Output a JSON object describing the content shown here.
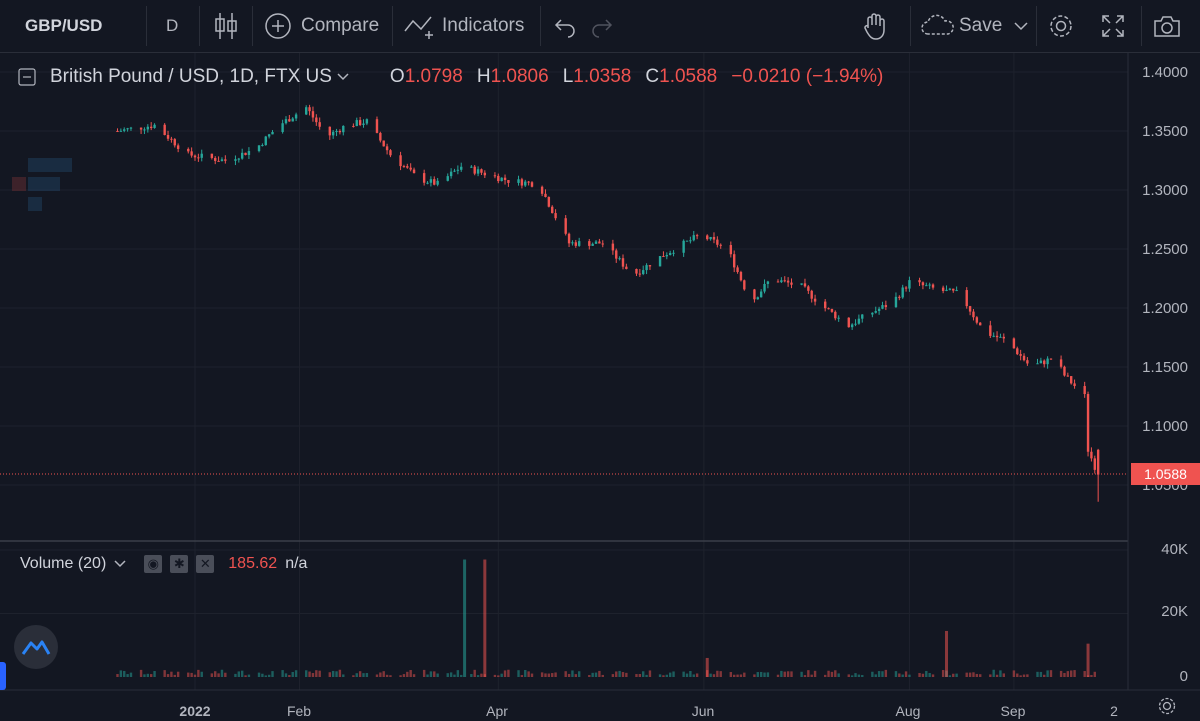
{
  "toolbar": {
    "symbol": "GBP/USD",
    "interval": "D",
    "compare_label": "Compare",
    "indicators_label": "Indicators",
    "save_label": "Save"
  },
  "legend": {
    "title": "British Pound / USD, 1D, FTX US",
    "o_label": "O",
    "o_value": "1.0798",
    "h_label": "H",
    "h_value": "1.0806",
    "l_label": "L",
    "l_value": "1.0358",
    "c_label": "C",
    "c_value": "1.0588",
    "change": "−0.0210 (−1.94%)"
  },
  "price_axis": [
    "1.4000",
    "1.3500",
    "1.3000",
    "1.2500",
    "1.2000",
    "1.1500",
    "1.1000",
    "1.0500"
  ],
  "current_price": "1.0588",
  "volume_legend": {
    "label": "Volume (20)",
    "value": "185.62",
    "na": "n/a"
  },
  "volume_axis": [
    "40K",
    "20K",
    "0"
  ],
  "time_axis": [
    "2022",
    "Feb",
    "Apr",
    "Jun",
    "Aug",
    "Sep",
    "2"
  ],
  "colors": {
    "up": "#26a69a",
    "down": "#ef5350",
    "background": "#131722",
    "grid": "#1e222d"
  },
  "chart_data": {
    "type": "candlestick",
    "ylim": [
      1.03,
      1.41
    ],
    "volume_ylim": [
      0,
      40000
    ],
    "anchors": [
      {
        "date": "2021-12-09",
        "close": 1.35
      },
      {
        "date": "2021-12-20",
        "close": 1.355
      },
      {
        "date": "2021-12-30",
        "close": 1.33
      },
      {
        "date": "2022-01-10",
        "close": 1.325
      },
      {
        "date": "2022-01-19",
        "close": 1.335
      },
      {
        "date": "2022-01-26",
        "close": 1.355
      },
      {
        "date": "2022-02-03",
        "close": 1.37
      },
      {
        "date": "2022-02-09",
        "close": 1.345
      },
      {
        "date": "2022-02-15",
        "close": 1.355
      },
      {
        "date": "2022-02-21",
        "close": 1.358
      },
      {
        "date": "2022-02-28",
        "close": 1.33
      },
      {
        "date": "2022-03-08",
        "close": 1.31
      },
      {
        "date": "2022-03-14",
        "close": 1.305
      },
      {
        "date": "2022-03-21",
        "close": 1.32
      },
      {
        "date": "2022-04-04",
        "close": 1.308
      },
      {
        "date": "2022-04-13",
        "close": 1.305
      },
      {
        "date": "2022-04-22",
        "close": 1.255
      },
      {
        "date": "2022-05-02",
        "close": 1.255
      },
      {
        "date": "2022-05-11",
        "close": 1.228
      },
      {
        "date": "2022-05-20",
        "close": 1.245
      },
      {
        "date": "2022-05-31",
        "close": 1.262
      },
      {
        "date": "2022-06-08",
        "close": 1.25
      },
      {
        "date": "2022-06-15",
        "close": 1.205
      },
      {
        "date": "2022-06-21",
        "close": 1.225
      },
      {
        "date": "2022-06-30",
        "close": 1.218
      },
      {
        "date": "2022-07-07",
        "close": 1.2
      },
      {
        "date": "2022-07-14",
        "close": 1.185
      },
      {
        "date": "2022-07-20",
        "close": 1.195
      },
      {
        "date": "2022-07-27",
        "close": 1.205
      },
      {
        "date": "2022-08-01",
        "close": 1.222
      },
      {
        "date": "2022-08-10",
        "close": 1.215
      },
      {
        "date": "2022-08-16",
        "close": 1.212
      },
      {
        "date": "2022-08-23",
        "close": 1.18
      },
      {
        "date": "2022-08-30",
        "close": 1.172
      },
      {
        "date": "2022-09-06",
        "close": 1.15
      },
      {
        "date": "2022-09-13",
        "close": 1.158
      },
      {
        "date": "2022-09-16",
        "close": 1.143
      },
      {
        "date": "2022-09-22",
        "close": 1.125
      },
      {
        "date": "2022-09-23",
        "close": 1.0798
      },
      {
        "date": "2022-09-26",
        "close": 1.0588
      }
    ],
    "last_candle": {
      "date": "2022-09-26",
      "open": 1.0798,
      "high": 1.0806,
      "low": 1.0358,
      "close": 1.0588
    },
    "volume_spikes": [
      {
        "date": "2022-03-22",
        "volume": 37000,
        "up": true
      },
      {
        "date": "2022-03-28",
        "volume": 37000,
        "up": false
      },
      {
        "date": "2022-08-12",
        "volume": 14500,
        "up": false
      },
      {
        "date": "2022-09-23",
        "volume": 10500,
        "up": false
      },
      {
        "date": "2022-06-02",
        "volume": 6000,
        "up": false
      }
    ]
  }
}
